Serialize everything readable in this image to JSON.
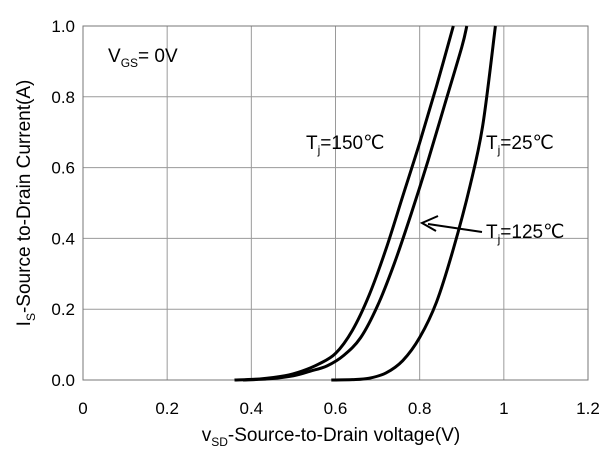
{
  "chart_data": {
    "type": "line",
    "xlabel": {
      "main": "v",
      "sub": "SD",
      "rest": "-Source-to-Drain voltage(V)"
    },
    "ylabel": {
      "main": "I",
      "sub": "S",
      "rest": "-Source  to-Drain Current(A)"
    },
    "xlim": [
      0,
      1.2
    ],
    "ylim": [
      0,
      1.0
    ],
    "xticks": [
      "0",
      "0.2",
      "0.4",
      "0.6",
      "0.8",
      "1",
      "1.2"
    ],
    "yticks": [
      "0.0",
      "0.2",
      "0.4",
      "0.6",
      "0.8",
      "1.0"
    ],
    "grid": true,
    "condition": {
      "main": "V",
      "sub": "GS",
      "rest": "= 0V"
    },
    "series": [
      {
        "name": "Tj=150℃",
        "label": {
          "main": "T",
          "sub": "j",
          "rest": "=150℃"
        },
        "points": [
          [
            0.36,
            0.0
          ],
          [
            0.42,
            0.003
          ],
          [
            0.48,
            0.012
          ],
          [
            0.52,
            0.025
          ],
          [
            0.56,
            0.045
          ],
          [
            0.6,
            0.075
          ],
          [
            0.64,
            0.14
          ],
          [
            0.68,
            0.24
          ],
          [
            0.72,
            0.37
          ],
          [
            0.76,
            0.52
          ],
          [
            0.8,
            0.67
          ],
          [
            0.84,
            0.83
          ],
          [
            0.88,
            1.0
          ]
        ]
      },
      {
        "name": "Tj=125℃",
        "label": {
          "main": "T",
          "sub": "j",
          "rest": "=125℃"
        },
        "points": [
          [
            0.38,
            0.0
          ],
          [
            0.44,
            0.003
          ],
          [
            0.5,
            0.012
          ],
          [
            0.54,
            0.025
          ],
          [
            0.58,
            0.04
          ],
          [
            0.62,
            0.07
          ],
          [
            0.66,
            0.12
          ],
          [
            0.7,
            0.21
          ],
          [
            0.74,
            0.33
          ],
          [
            0.78,
            0.47
          ],
          [
            0.82,
            0.62
          ],
          [
            0.86,
            0.78
          ],
          [
            0.9,
            0.94
          ],
          [
            0.912,
            1.0
          ]
        ]
      },
      {
        "name": "Tj=25℃",
        "label": {
          "main": "T",
          "sub": "j",
          "rest": "=25℃"
        },
        "points": [
          [
            0.59,
            0.0
          ],
          [
            0.64,
            0.001
          ],
          [
            0.68,
            0.005
          ],
          [
            0.72,
            0.02
          ],
          [
            0.76,
            0.055
          ],
          [
            0.8,
            0.12
          ],
          [
            0.84,
            0.22
          ],
          [
            0.88,
            0.37
          ],
          [
            0.92,
            0.55
          ],
          [
            0.95,
            0.72
          ],
          [
            0.98,
            1.0
          ]
        ]
      }
    ]
  }
}
